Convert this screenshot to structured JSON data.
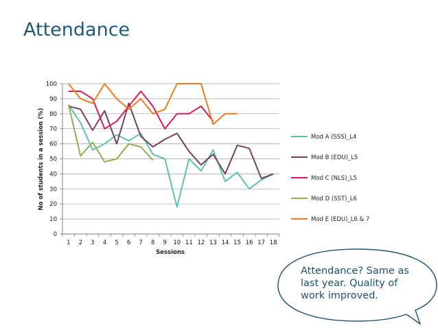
{
  "slide": {
    "title": "Attendance",
    "callout": "Attendance? Same as last year. Quality of work improved."
  },
  "chart_data": {
    "type": "line",
    "title": "",
    "xlabel": "Sessions",
    "ylabel": "No of students in a session (%)",
    "x": [
      1,
      2,
      3,
      4,
      5,
      6,
      7,
      8,
      9,
      10,
      11,
      12,
      13,
      14,
      15,
      16,
      17,
      18
    ],
    "y_ticks": [
      0,
      10,
      20,
      30,
      40,
      50,
      60,
      70,
      80,
      90,
      100
    ],
    "ylim": [
      0,
      100
    ],
    "grid": true,
    "legend_position": "right",
    "series": [
      {
        "name": "Mod A (SSS)_L4",
        "color": "#5cc1b0",
        "values": [
          86,
          74,
          56,
          60,
          66,
          62,
          67,
          53,
          50,
          18,
          50,
          42,
          56,
          35,
          41,
          30,
          36,
          40
        ]
      },
      {
        "name": "Mod B (EDU)_L5",
        "color": "#7a3e5e",
        "values": [
          85,
          83,
          69,
          82,
          60,
          87,
          65,
          58,
          63,
          67,
          55,
          46,
          53,
          40,
          59,
          57,
          37,
          40
        ]
      },
      {
        "name": "Mod C (NLS)_L5",
        "color": "#d81b52",
        "values": [
          95,
          95,
          90,
          70,
          75,
          85,
          95,
          85,
          70,
          80,
          80,
          85,
          75,
          null,
          null,
          null,
          null,
          null
        ]
      },
      {
        "name": "Mod D (SST)_L6",
        "color": "#8db04a",
        "values": [
          86,
          52,
          61,
          48,
          50,
          60,
          58,
          49,
          null,
          null,
          null,
          null,
          null,
          null,
          null,
          null,
          null,
          null
        ]
      },
      {
        "name": "Mod E (EDU)_L6 & 7",
        "color": "#ef7a1a",
        "values": [
          100,
          90,
          87,
          100,
          90,
          83,
          90,
          80,
          83,
          100,
          100,
          100,
          73,
          80,
          80,
          null,
          null,
          null
        ]
      }
    ]
  }
}
